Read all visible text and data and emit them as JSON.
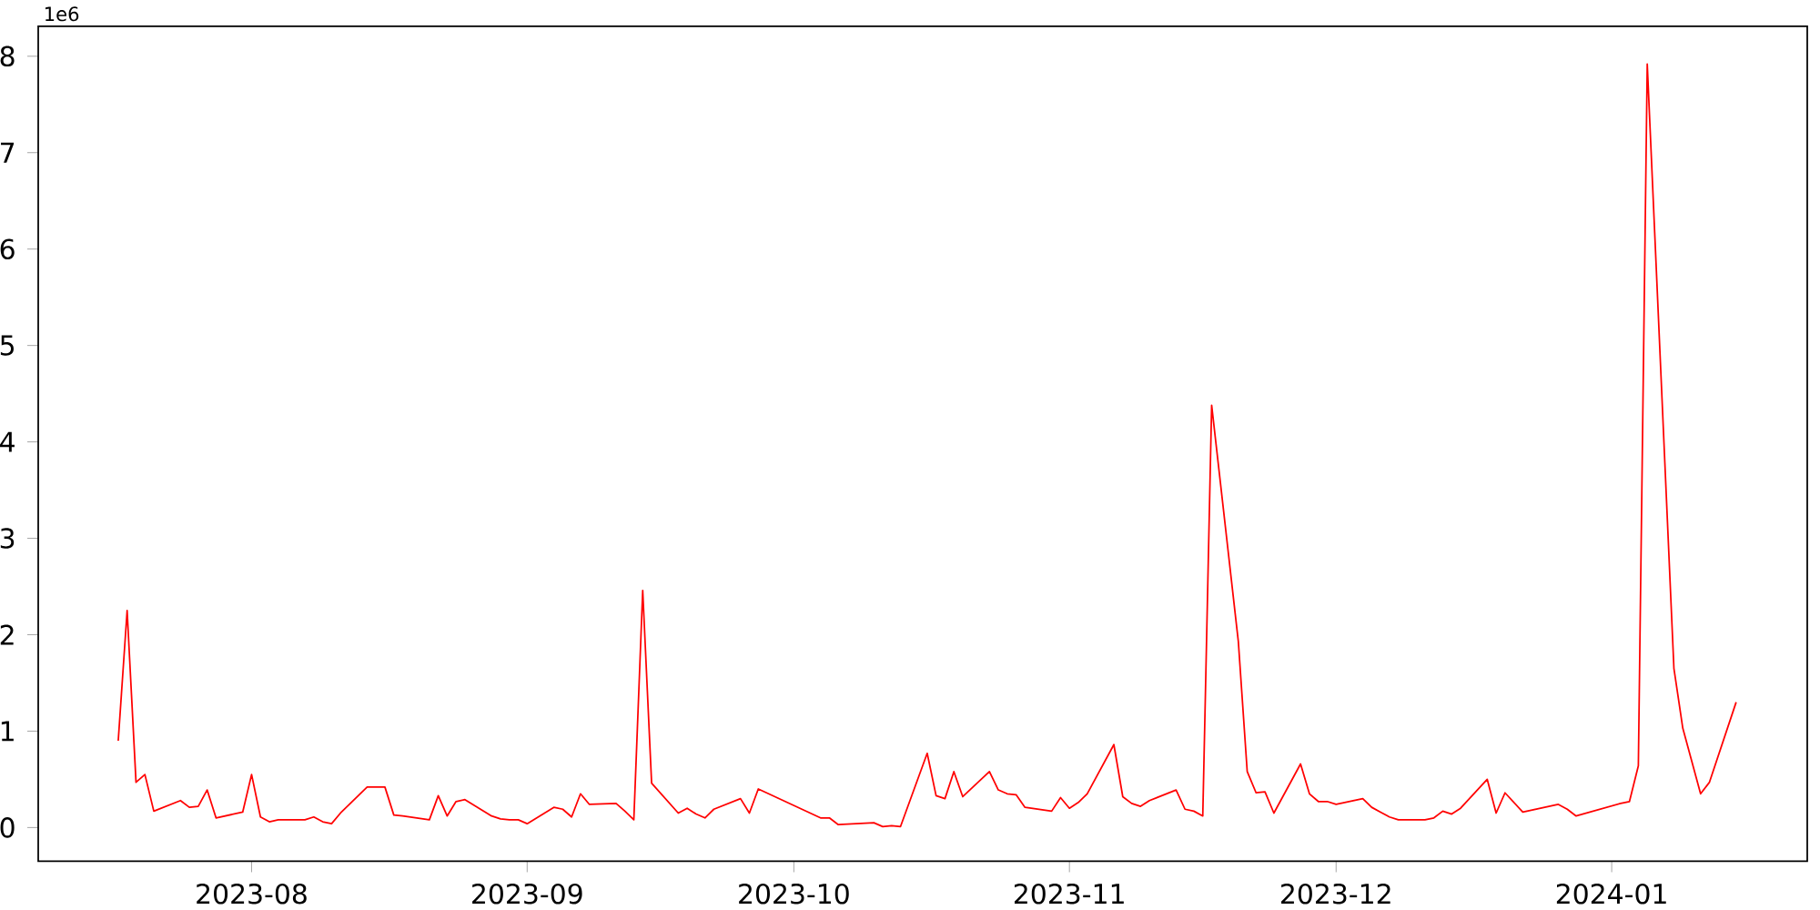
{
  "chart_data": {
    "type": "line",
    "color": "#ff0000",
    "annotations": [
      "1e6"
    ],
    "x": [
      "2023-07-17",
      "2023-07-18",
      "2023-07-19",
      "2023-07-20",
      "2023-07-21",
      "2023-07-24",
      "2023-07-25",
      "2023-07-26",
      "2023-07-27",
      "2023-07-28",
      "2023-07-31",
      "2023-08-01",
      "2023-08-02",
      "2023-08-03",
      "2023-08-04",
      "2023-08-07",
      "2023-08-08",
      "2023-08-09",
      "2023-08-10",
      "2023-08-11",
      "2023-08-14",
      "2023-08-16",
      "2023-08-17",
      "2023-08-18",
      "2023-08-21",
      "2023-08-22",
      "2023-08-23",
      "2023-08-24",
      "2023-08-25",
      "2023-08-28",
      "2023-08-29",
      "2023-08-30",
      "2023-08-31",
      "2023-09-01",
      "2023-09-04",
      "2023-09-05",
      "2023-09-06",
      "2023-09-07",
      "2023-09-08",
      "2023-09-11",
      "2023-09-12",
      "2023-09-13",
      "2023-09-14",
      "2023-09-15",
      "2023-09-18",
      "2023-09-19",
      "2023-09-20",
      "2023-09-21",
      "2023-09-22",
      "2023-09-25",
      "2023-09-26",
      "2023-09-27",
      "2023-10-04",
      "2023-10-05",
      "2023-10-06",
      "2023-10-10",
      "2023-10-11",
      "2023-10-12",
      "2023-10-13",
      "2023-10-16",
      "2023-10-17",
      "2023-10-18",
      "2023-10-19",
      "2023-10-20",
      "2023-10-23",
      "2023-10-24",
      "2023-10-25",
      "2023-10-26",
      "2023-10-27",
      "2023-10-30",
      "2023-10-31",
      "2023-11-01",
      "2023-11-02",
      "2023-11-03",
      "2023-11-06",
      "2023-11-07",
      "2023-11-08",
      "2023-11-09",
      "2023-11-10",
      "2023-11-13",
      "2023-11-14",
      "2023-11-15",
      "2023-11-16",
      "2023-11-17",
      "2023-11-20",
      "2023-11-21",
      "2023-11-22",
      "2023-11-23",
      "2023-11-24",
      "2023-11-27",
      "2023-11-28",
      "2023-11-29",
      "2023-11-30",
      "2023-12-01",
      "2023-12-04",
      "2023-12-05",
      "2023-12-06",
      "2023-12-07",
      "2023-12-08",
      "2023-12-11",
      "2023-12-12",
      "2023-12-13",
      "2023-12-14",
      "2023-12-15",
      "2023-12-18",
      "2023-12-19",
      "2023-12-20",
      "2023-12-22",
      "2023-12-26",
      "2023-12-27",
      "2023-12-28",
      "2024-01-02",
      "2024-01-03",
      "2024-01-04",
      "2024-01-05",
      "2024-01-08",
      "2024-01-09",
      "2024-01-11",
      "2024-01-12",
      "2024-01-15"
    ],
    "values": [
      0.9,
      2.25,
      0.47,
      0.55,
      0.17,
      0.28,
      0.21,
      0.22,
      0.39,
      0.1,
      0.16,
      0.55,
      0.11,
      0.06,
      0.08,
      0.08,
      0.11,
      0.06,
      0.04,
      0.15,
      0.42,
      0.42,
      0.13,
      0.12,
      0.08,
      0.33,
      0.12,
      0.27,
      0.29,
      0.12,
      0.09,
      0.08,
      0.08,
      0.04,
      0.21,
      0.19,
      0.11,
      0.35,
      0.24,
      0.25,
      0.17,
      0.08,
      2.46,
      0.46,
      0.15,
      0.2,
      0.14,
      0.1,
      0.19,
      0.3,
      0.15,
      0.4,
      0.1,
      0.1,
      0.03,
      0.05,
      0.01,
      0.02,
      0.01,
      0.77,
      0.33,
      0.3,
      0.58,
      0.32,
      0.58,
      0.39,
      0.35,
      0.34,
      0.21,
      0.17,
      0.31,
      0.2,
      0.26,
      0.35,
      0.86,
      0.32,
      0.25,
      0.22,
      0.28,
      0.39,
      0.19,
      0.17,
      0.12,
      4.38,
      1.93,
      0.58,
      0.36,
      0.37,
      0.15,
      0.66,
      0.35,
      0.27,
      0.27,
      0.24,
      0.3,
      0.21,
      0.16,
      0.11,
      0.08,
      0.08,
      0.1,
      0.17,
      0.14,
      0.2,
      0.5,
      0.15,
      0.36,
      0.16,
      0.24,
      0.19,
      0.12,
      0.25,
      0.27,
      0.64,
      7.92,
      1.65,
      1.03,
      0.35,
      0.47,
      1.3
    ],
    "xlim": [
      "2023-07-08",
      "2024-01-23"
    ],
    "xticks": [
      {
        "value": "2023-08-01",
        "label": "2023-08"
      },
      {
        "value": "2023-09-01",
        "label": "2023-09"
      },
      {
        "value": "2023-10-01",
        "label": "2023-10"
      },
      {
        "value": "2023-11-01",
        "label": "2023-11"
      },
      {
        "value": "2023-12-01",
        "label": "2023-12"
      },
      {
        "value": "2024-01-01",
        "label": "2024-01"
      }
    ],
    "ylim": [
      -0.35,
      8.31
    ],
    "yticks": [
      0,
      1,
      2,
      3,
      4,
      5,
      6,
      7,
      8
    ],
    "grid": false,
    "marker": "none",
    "line_style": "solid"
  }
}
